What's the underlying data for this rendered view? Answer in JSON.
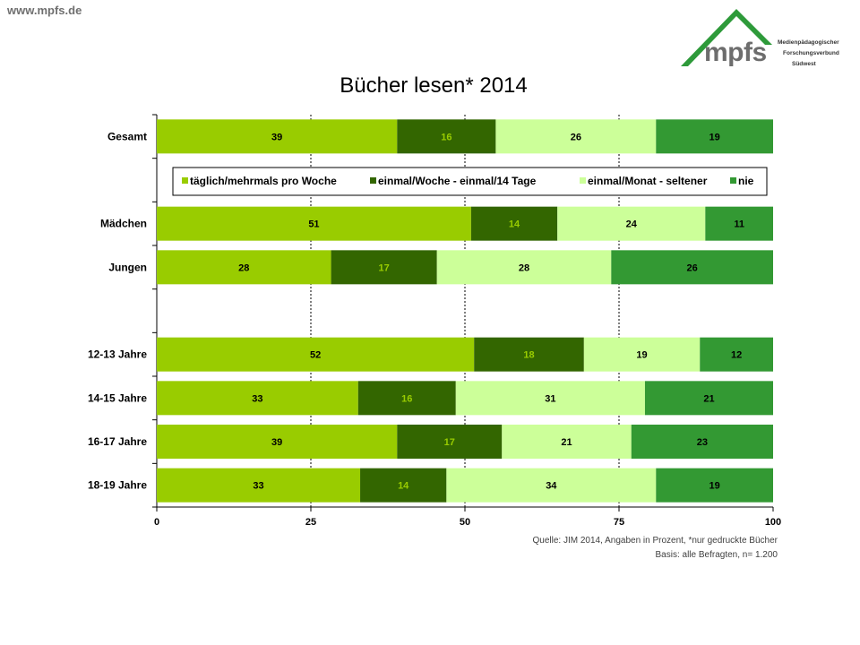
{
  "site_url": "www.mpfs.de",
  "logo": {
    "word": "mpfs",
    "line1": "Medienpädagogischer",
    "line2": "Forschungsverbund",
    "line3": "Südwest",
    "colors": {
      "roof": "#2e9a3a",
      "text": "#6d6d6d"
    }
  },
  "colors": {
    "taeglich": "#99cc00",
    "einmal_woche": "#336600",
    "einmal_monat": "#ccff99",
    "nie": "#339933",
    "value_label": "#000000",
    "value_label_dark": "#99cc00"
  },
  "source_note_1": "Quelle: JIM 2014, Angaben in Prozent, *nur gedruckte Bücher",
  "source_note_2": "Basis: alle Befragten, n= 1.200",
  "chart_data": {
    "type": "bar",
    "orientation": "horizontal",
    "stacked": true,
    "title": "Bücher lesen* 2014",
    "xlim": [
      0,
      100
    ],
    "x_ticks": [
      "0",
      "25",
      "50",
      "75",
      "100"
    ],
    "grid": "vertical dashed",
    "legend_position": "inside-top",
    "categories": [
      "Gesamt",
      "",
      "Mädchen",
      "Jungen",
      "",
      "12-13 Jahre",
      "14-15 Jahre",
      "16-17 Jahre",
      "18-19 Jahre"
    ],
    "series": [
      {
        "name": "täglich/mehrmals pro Woche",
        "key": "taeglich",
        "values": [
          39,
          null,
          51,
          28,
          null,
          52,
          33,
          39,
          33
        ]
      },
      {
        "name": "einmal/Woche - einmal/14 Tage",
        "key": "einmal_woche",
        "values": [
          16,
          null,
          14,
          17,
          null,
          18,
          16,
          17,
          14
        ]
      },
      {
        "name": "einmal/Monat - seltener",
        "key": "einmal_monat",
        "values": [
          26,
          null,
          24,
          28,
          null,
          19,
          31,
          21,
          34
        ]
      },
      {
        "name": "nie",
        "key": "nie",
        "values": [
          19,
          null,
          11,
          26,
          null,
          12,
          21,
          23,
          19
        ]
      }
    ]
  }
}
